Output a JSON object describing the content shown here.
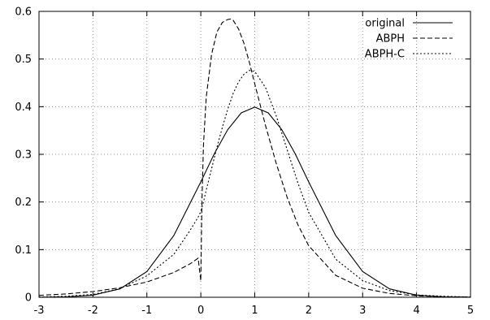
{
  "chart_data": {
    "type": "line",
    "title": "",
    "xlabel": "",
    "ylabel": "",
    "xlim": [
      -3,
      5
    ],
    "ylim": [
      0,
      0.6
    ],
    "xticks": [
      "-3",
      "-2",
      "-1",
      "0",
      "1",
      "2",
      "3",
      "4",
      "5"
    ],
    "yticks": [
      "0",
      "0.1",
      "0.2",
      "0.3",
      "0.4",
      "0.5",
      "0.6"
    ],
    "grid": true,
    "legend_position": "top-right",
    "series": [
      {
        "name": "original",
        "style": "solid",
        "x": [
          -3,
          -2.5,
          -2,
          -1.5,
          -1,
          -0.5,
          0,
          0.25,
          0.5,
          0.75,
          1,
          1.25,
          1.5,
          1.75,
          2,
          2.5,
          3,
          3.5,
          4,
          4.5,
          5
        ],
        "y": [
          0.0001,
          0.0009,
          0.0044,
          0.0175,
          0.054,
          0.1295,
          0.242,
          0.301,
          0.352,
          0.387,
          0.399,
          0.387,
          0.352,
          0.301,
          0.242,
          0.1295,
          0.054,
          0.0175,
          0.0044,
          0.0009,
          0.0001
        ]
      },
      {
        "name": "ABPH",
        "style": "dashed",
        "x": [
          -3,
          -2.5,
          -2,
          -1.5,
          -1,
          -0.5,
          -0.2,
          -0.05,
          0,
          0.02,
          0.05,
          0.1,
          0.2,
          0.3,
          0.4,
          0.5,
          0.55,
          0.6,
          0.7,
          0.8,
          0.9,
          1,
          1.2,
          1.4,
          1.6,
          1.8,
          2,
          2.5,
          3,
          3.5,
          4,
          4.5,
          5
        ],
        "y": [
          0.004,
          0.007,
          0.012,
          0.02,
          0.032,
          0.052,
          0.07,
          0.082,
          0.035,
          0.2,
          0.32,
          0.42,
          0.51,
          0.557,
          0.577,
          0.583,
          0.584,
          0.581,
          0.563,
          0.533,
          0.493,
          0.448,
          0.36,
          0.28,
          0.21,
          0.152,
          0.108,
          0.046,
          0.019,
          0.008,
          0.003,
          0.001,
          0.0005
        ]
      },
      {
        "name": "ABPH-C",
        "style": "dotted",
        "x": [
          -3,
          -2.5,
          -2,
          -1.5,
          -1,
          -0.5,
          -0.2,
          -0.05,
          0,
          0.05,
          0.1,
          0.2,
          0.3,
          0.4,
          0.5,
          0.6,
          0.7,
          0.8,
          0.9,
          1,
          1.2,
          1.4,
          1.6,
          1.8,
          2,
          2.5,
          3,
          3.5,
          4,
          4.5,
          5
        ],
        "y": [
          0.0005,
          0.002,
          0.006,
          0.018,
          0.045,
          0.09,
          0.14,
          0.168,
          0.18,
          0.2,
          0.225,
          0.27,
          0.315,
          0.357,
          0.395,
          0.428,
          0.452,
          0.468,
          0.476,
          0.474,
          0.44,
          0.38,
          0.31,
          0.24,
          0.178,
          0.08,
          0.035,
          0.014,
          0.005,
          0.002,
          0.0005
        ]
      }
    ]
  }
}
